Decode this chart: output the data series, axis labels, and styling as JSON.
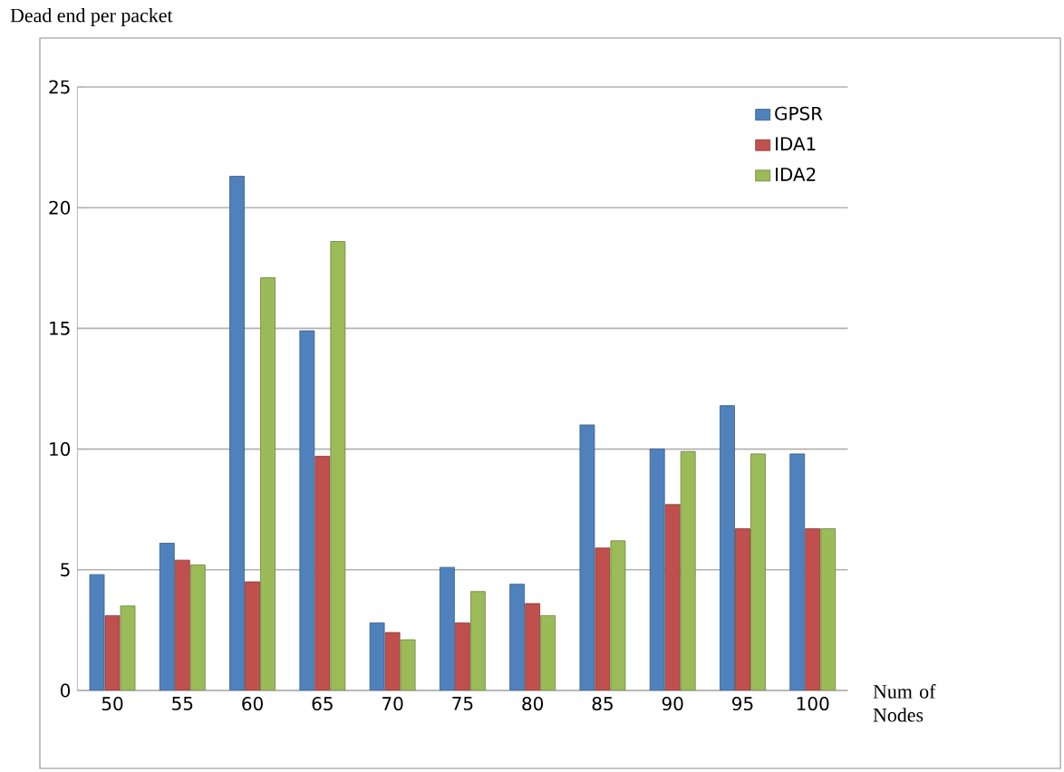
{
  "chart_data": {
    "type": "bar",
    "ylabel": "Dead end per packet",
    "xlabel": "Num of Nodes",
    "categories": [
      "50",
      "55",
      "60",
      "65",
      "70",
      "75",
      "80",
      "85",
      "90",
      "95",
      "100"
    ],
    "series": [
      {
        "name": "GPSR",
        "color": "#4f81bd",
        "values": [
          4.8,
          6.1,
          21.3,
          14.9,
          2.8,
          5.1,
          4.4,
          11.0,
          10.0,
          11.8,
          9.8
        ]
      },
      {
        "name": "IDA1",
        "color": "#c0504d",
        "values": [
          3.1,
          5.4,
          4.5,
          9.7,
          2.4,
          2.8,
          3.6,
          5.9,
          7.7,
          6.7,
          6.7
        ]
      },
      {
        "name": "IDA2",
        "color": "#9bbb59",
        "values": [
          3.5,
          5.2,
          17.1,
          18.6,
          2.1,
          4.1,
          3.1,
          6.2,
          9.9,
          9.8,
          6.7
        ]
      }
    ],
    "ylim": [
      0,
      25
    ],
    "yticks": [
      0,
      5,
      10,
      15,
      20,
      25
    ],
    "grid": "y",
    "legend": "top right"
  }
}
